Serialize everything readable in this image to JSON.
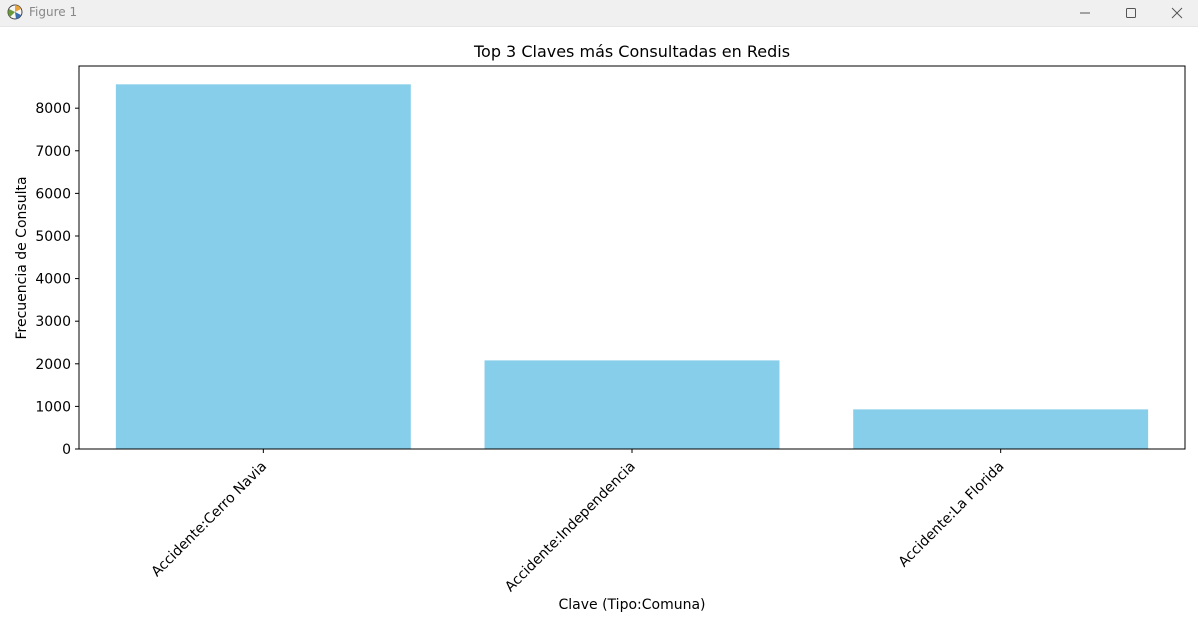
{
  "window": {
    "title": "Figure 1",
    "icon": "matplotlib-figure-icon",
    "controls": [
      "minimize-icon",
      "maximize-icon",
      "close-icon"
    ]
  },
  "chart_data": {
    "type": "bar",
    "title": "Top 3 Claves más Consultadas en Redis",
    "xlabel": "Clave (Tipo:Comuna)",
    "ylabel": "Frecuencia de Consulta",
    "categories": [
      "Accidente:Cerro Navia",
      "Accidente:Independencia",
      "Accidente:La Florida"
    ],
    "values": [
      8560,
      2080,
      930
    ],
    "ylim": [
      0,
      8990
    ],
    "yticks": [
      0,
      1000,
      2000,
      3000,
      4000,
      5000,
      6000,
      7000,
      8000
    ],
    "xtick_rotation": 45,
    "bar_color": "#87ceeb",
    "grid": false,
    "legend": false
  }
}
